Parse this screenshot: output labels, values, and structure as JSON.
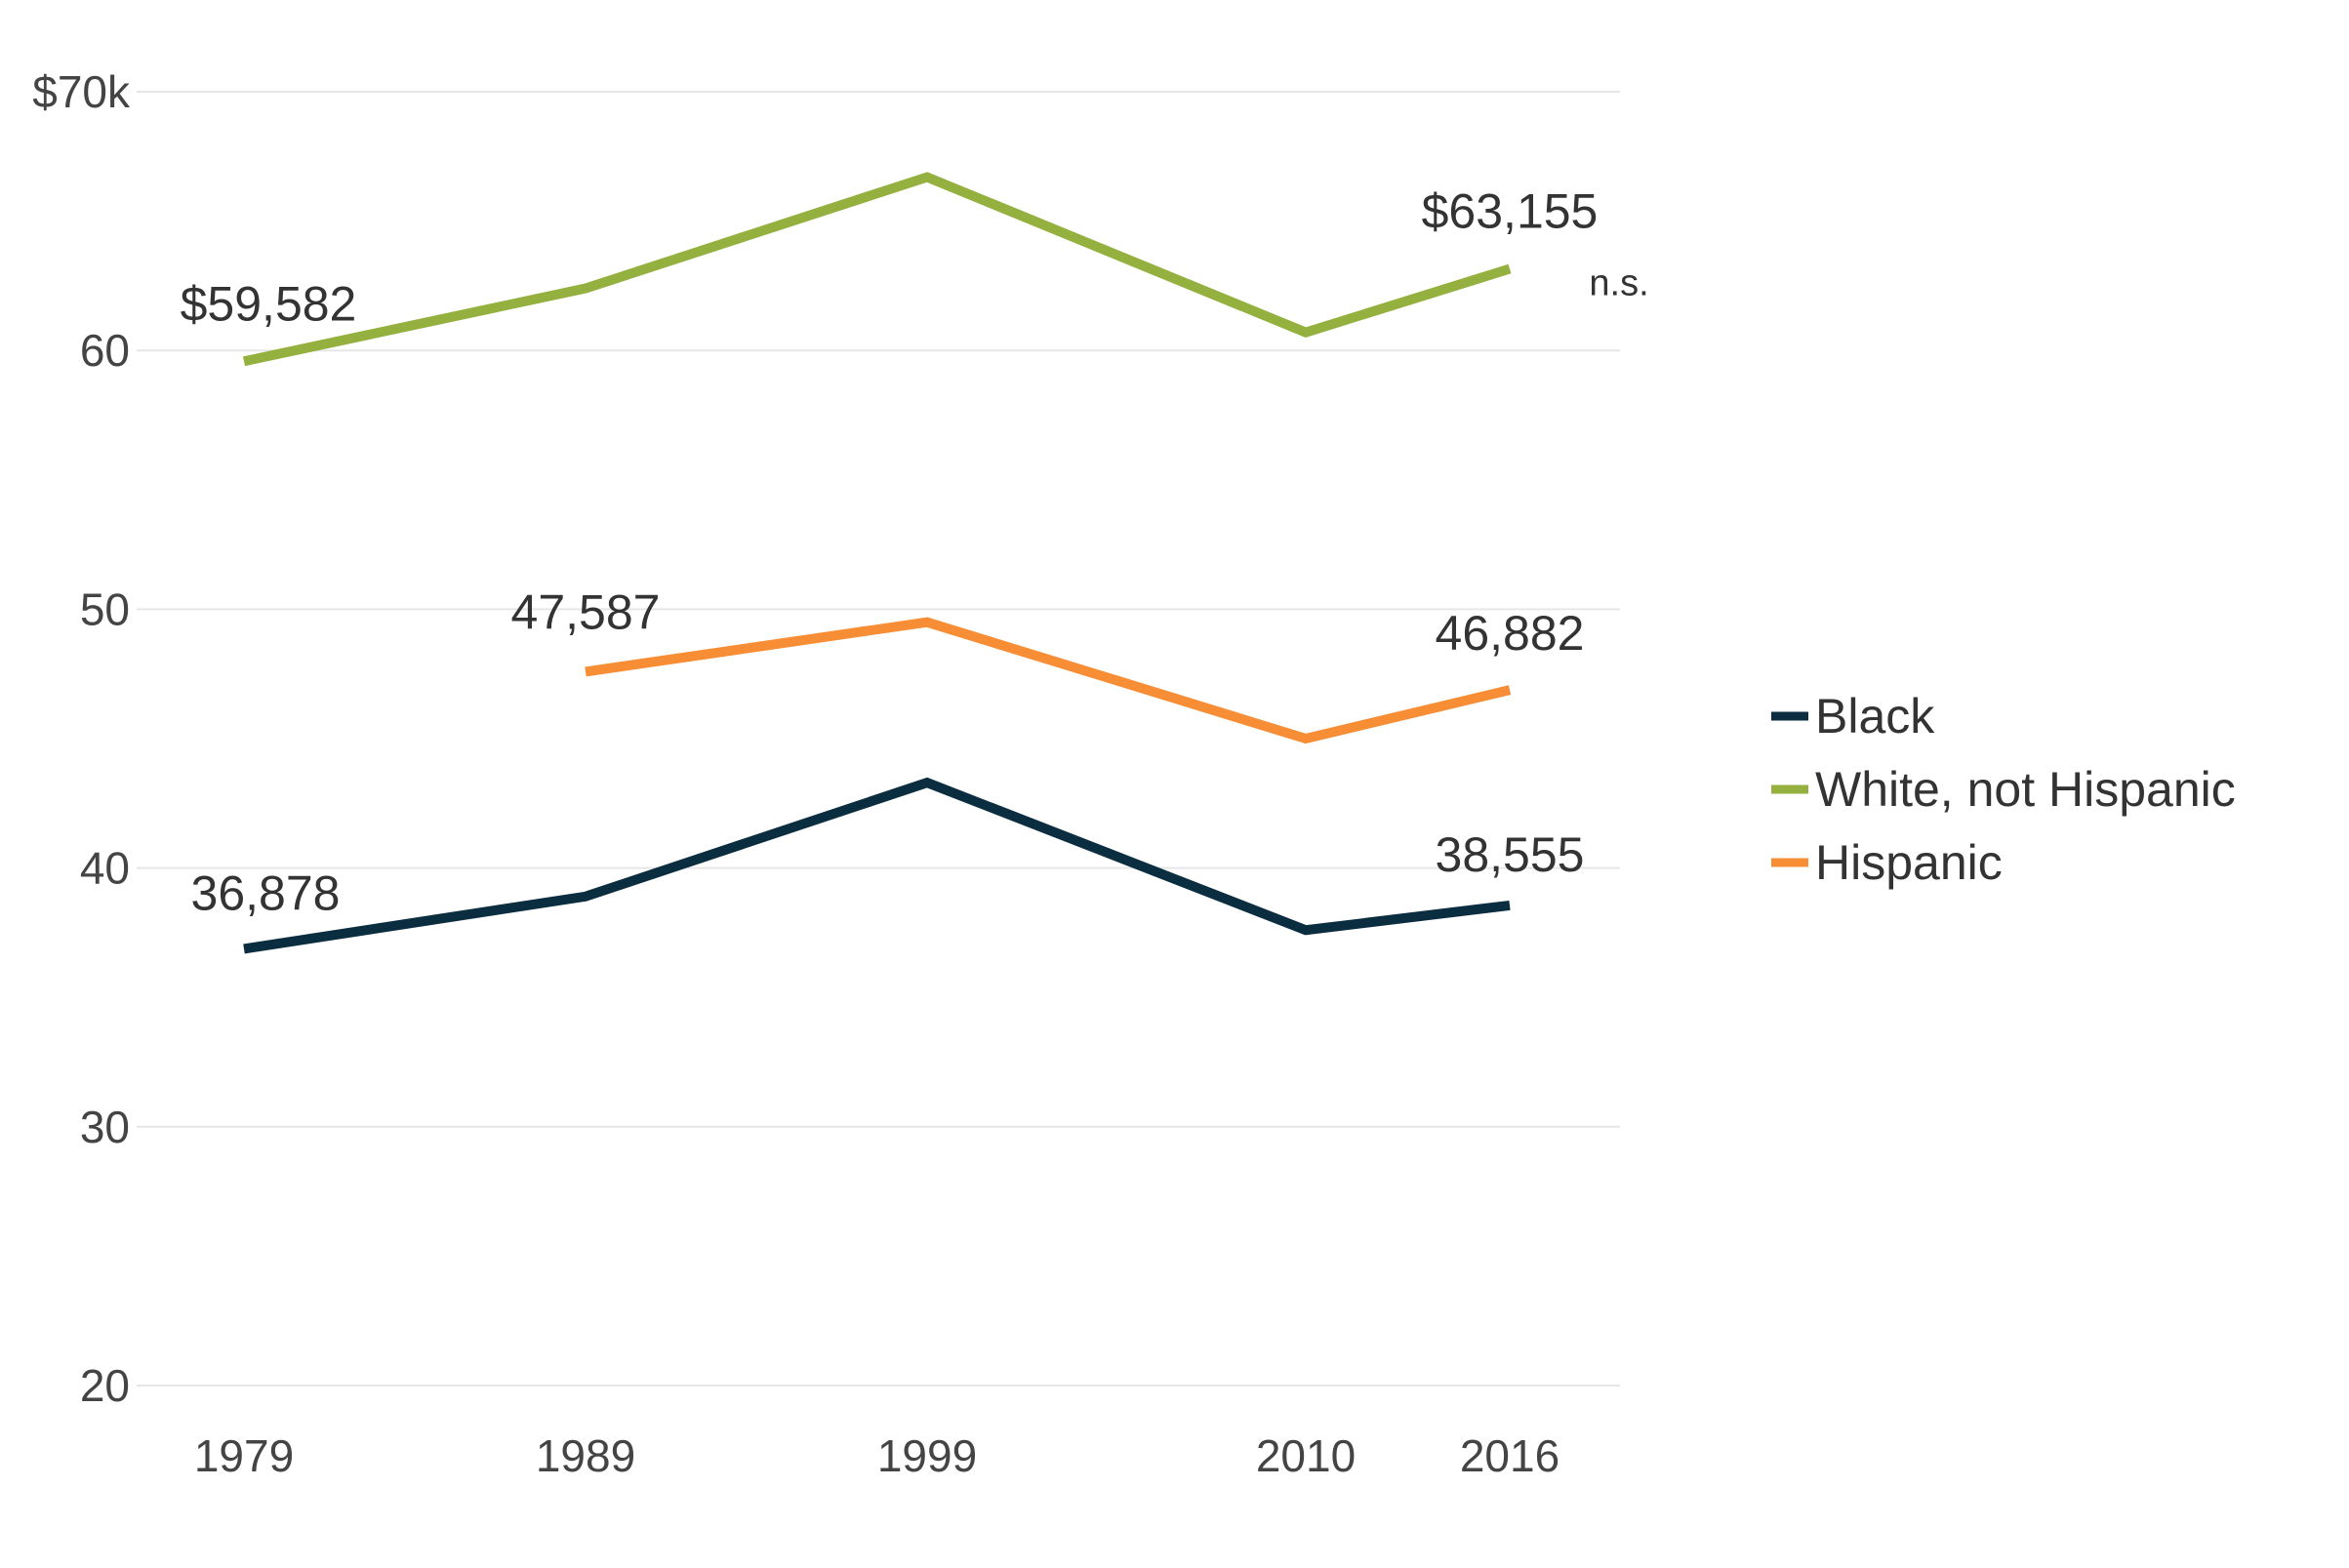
{
  "chart_data": {
    "type": "line",
    "title": "",
    "xlabel": "",
    "ylabel": "",
    "x": [
      1979,
      1989,
      1999,
      2010,
      2016
    ],
    "xtick_labels": [
      "1979",
      "1989",
      "1999",
      "2010",
      "2016"
    ],
    "ylim": [
      20,
      70
    ],
    "yticks": [
      20,
      30,
      40,
      50,
      60,
      70
    ],
    "ytick_labels": [
      "20",
      "30",
      "40",
      "50",
      "60",
      "$70k"
    ],
    "grid": true,
    "legend_position": "right",
    "series": [
      {
        "key": "white",
        "name": "White, not Hispanic",
        "color": "#94b03e",
        "values": [
          59.582,
          62.4,
          66.7,
          60.7,
          63.155
        ]
      },
      {
        "key": "hispanic",
        "name": "Hispanic",
        "color": "#f78d34",
        "values": [
          null,
          47.587,
          49.5,
          45.0,
          46.882
        ]
      },
      {
        "key": "black",
        "name": "Black",
        "color": "#0b2d40",
        "values": [
          36.878,
          38.9,
          43.3,
          37.6,
          38.555
        ]
      }
    ],
    "legend_order": [
      "black",
      "white",
      "hispanic"
    ],
    "annotations": [
      {
        "series": "white",
        "x": 1979,
        "text": "$59,582"
      },
      {
        "series": "white",
        "x": 2016,
        "text": "$63,155"
      },
      {
        "series": "white",
        "x": 2016,
        "text": "n.s.",
        "kind": "note"
      },
      {
        "series": "hispanic",
        "x": 1989,
        "text": "47,587"
      },
      {
        "series": "hispanic",
        "x": 2016,
        "text": "46,882"
      },
      {
        "series": "black",
        "x": 1979,
        "text": "36,878"
      },
      {
        "series": "black",
        "x": 2016,
        "text": "38,555"
      }
    ]
  }
}
